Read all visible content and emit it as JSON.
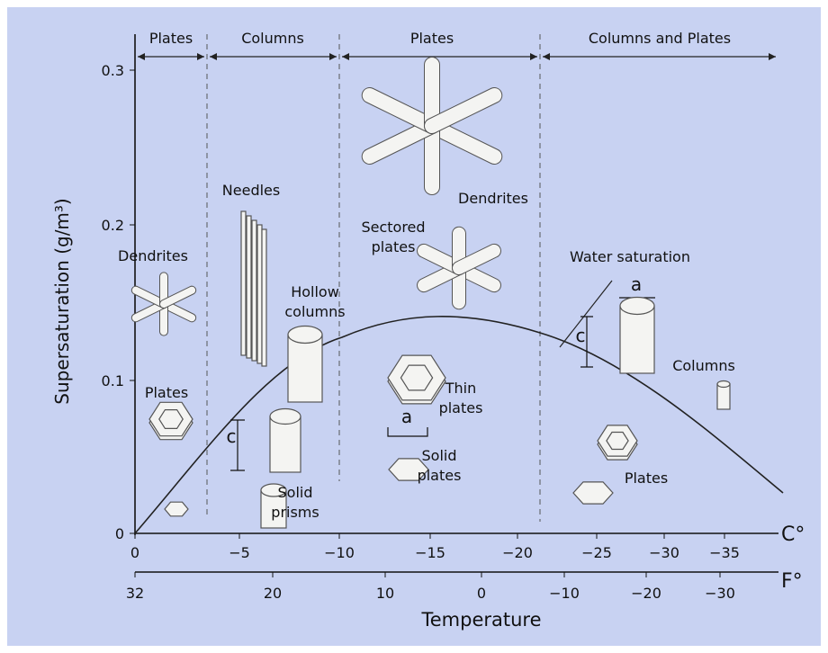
{
  "regions": [
    "Plates",
    "Columns",
    "Plates",
    "Columns and Plates"
  ],
  "y_axis": {
    "label": "Supersaturation (g/m³)",
    "ticks": [
      "0",
      "0.1",
      "0.2",
      "0.3"
    ]
  },
  "x_axis_c": {
    "unit": "C°",
    "ticks": [
      "0",
      "−5",
      "−10",
      "−15",
      "−20",
      "−25",
      "−30",
      "−35"
    ]
  },
  "x_axis_f": {
    "unit": "F°",
    "ticks": [
      "32",
      "20",
      "10",
      "0",
      "−10",
      "−20",
      "−30"
    ]
  },
  "x_axis_label": "Temperature",
  "curve_label": "Water saturation",
  "crystals": [
    {
      "lines": [
        "Dendrites"
      ]
    },
    {
      "lines": [
        "Plates"
      ]
    },
    {
      "lines": [
        "Needles"
      ]
    },
    {
      "lines": [
        "Hollow",
        "columns"
      ]
    },
    {
      "lines": [
        "Solid",
        "prisms"
      ]
    },
    {
      "lines": [
        "Sectored",
        "plates"
      ]
    },
    {
      "lines": [
        "Dendrites"
      ]
    },
    {
      "lines": [
        "Thin",
        "plates"
      ]
    },
    {
      "lines": [
        "Solid",
        "plates"
      ]
    },
    {
      "lines": [
        "Columns"
      ]
    },
    {
      "lines": [
        "Plates"
      ]
    }
  ],
  "dimensions": [
    "c",
    "a",
    "a",
    "c"
  ]
}
